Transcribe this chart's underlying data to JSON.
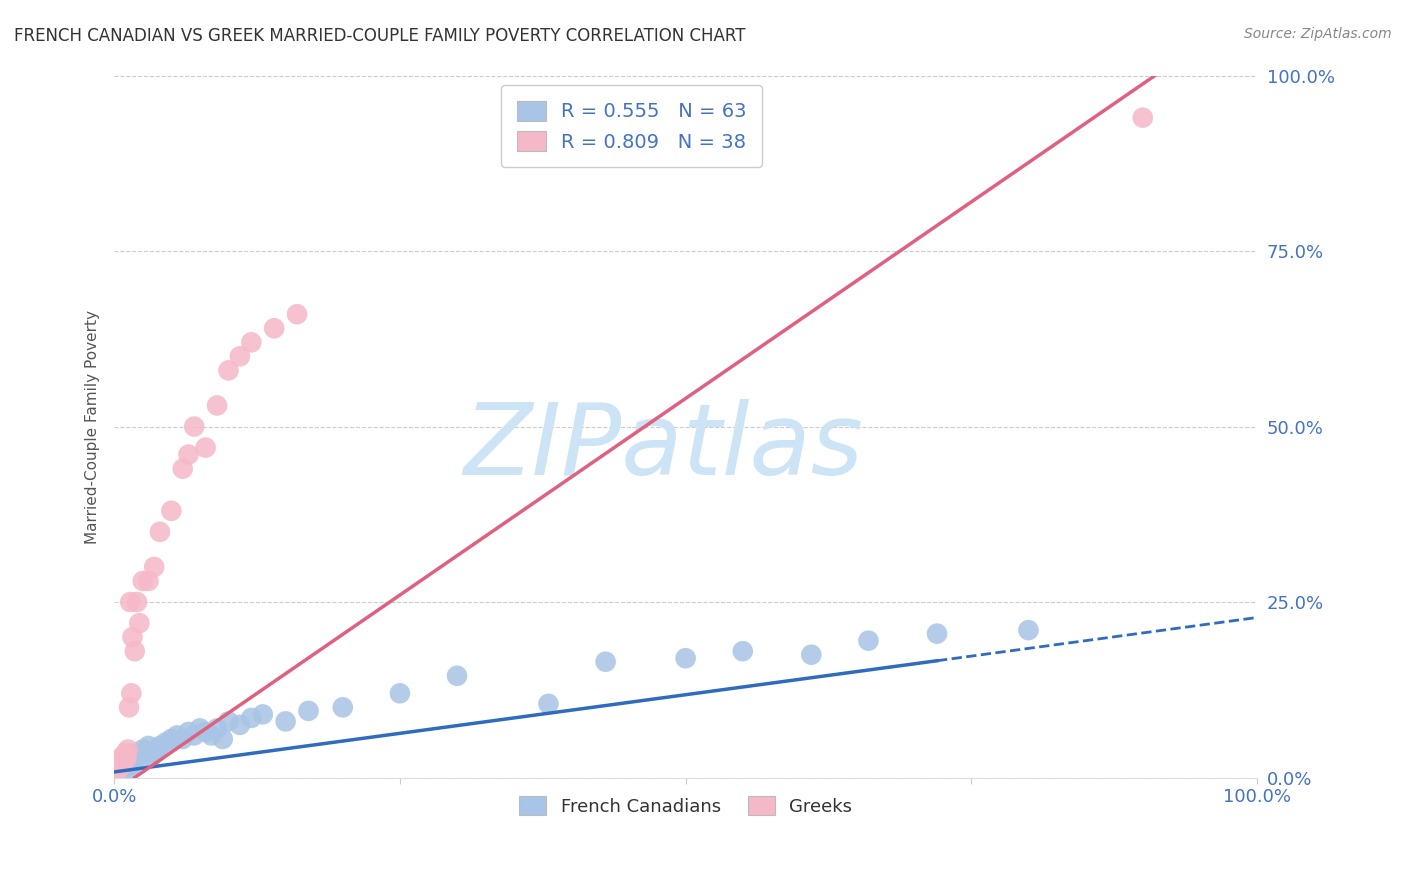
{
  "title": "FRENCH CANADIAN VS GREEK MARRIED-COUPLE FAMILY POVERTY CORRELATION CHART",
  "source": "Source: ZipAtlas.com",
  "ylabel": "Married-Couple Family Poverty",
  "xlim": [
    0.0,
    1.0
  ],
  "ylim": [
    0.0,
    1.0
  ],
  "ytick_labels": [
    "0.0%",
    "25.0%",
    "50.0%",
    "75.0%",
    "100.0%"
  ],
  "ytick_positions": [
    0.0,
    0.25,
    0.5,
    0.75,
    1.0
  ],
  "french_R": 0.555,
  "french_N": 63,
  "greek_R": 0.809,
  "greek_N": 38,
  "french_color": "#a8c4e6",
  "greek_color": "#f5b8c8",
  "french_line_color": "#2f6bbf",
  "greek_line_color": "#e06080",
  "legend_label_french": "French Canadians",
  "legend_label_greek": "Greeks",
  "background_color": "#ffffff",
  "grid_color": "#cccccc",
  "title_color": "#333333",
  "axis_label_color": "#4472c4",
  "watermark": "ZIPatlas",
  "watermark_color": "#cce4f5",
  "french_line_intercept": 0.008,
  "french_line_slope": 0.22,
  "greek_line_intercept": -0.02,
  "greek_line_slope": 1.12,
  "french_x": [
    0.002,
    0.003,
    0.003,
    0.004,
    0.004,
    0.005,
    0.005,
    0.006,
    0.006,
    0.007,
    0.007,
    0.008,
    0.008,
    0.009,
    0.009,
    0.01,
    0.01,
    0.011,
    0.011,
    0.012,
    0.013,
    0.014,
    0.015,
    0.015,
    0.016,
    0.017,
    0.018,
    0.02,
    0.022,
    0.025,
    0.028,
    0.03,
    0.033,
    0.036,
    0.04,
    0.045,
    0.05,
    0.055,
    0.06,
    0.065,
    0.07,
    0.075,
    0.08,
    0.085,
    0.09,
    0.095,
    0.1,
    0.11,
    0.12,
    0.13,
    0.15,
    0.17,
    0.2,
    0.25,
    0.3,
    0.38,
    0.43,
    0.5,
    0.55,
    0.61,
    0.66,
    0.72,
    0.8
  ],
  "french_y": [
    0.01,
    0.012,
    0.015,
    0.01,
    0.018,
    0.012,
    0.02,
    0.015,
    0.022,
    0.01,
    0.018,
    0.012,
    0.025,
    0.015,
    0.02,
    0.018,
    0.025,
    0.012,
    0.022,
    0.02,
    0.025,
    0.018,
    0.022,
    0.03,
    0.018,
    0.025,
    0.035,
    0.03,
    0.025,
    0.04,
    0.035,
    0.045,
    0.03,
    0.035,
    0.045,
    0.05,
    0.055,
    0.06,
    0.055,
    0.065,
    0.06,
    0.07,
    0.065,
    0.06,
    0.07,
    0.055,
    0.08,
    0.075,
    0.085,
    0.09,
    0.08,
    0.095,
    0.1,
    0.12,
    0.145,
    0.105,
    0.165,
    0.17,
    0.18,
    0.175,
    0.195,
    0.205,
    0.21
  ],
  "greek_x": [
    0.002,
    0.003,
    0.004,
    0.004,
    0.005,
    0.005,
    0.006,
    0.007,
    0.007,
    0.008,
    0.009,
    0.01,
    0.01,
    0.011,
    0.012,
    0.013,
    0.014,
    0.015,
    0.016,
    0.018,
    0.02,
    0.022,
    0.025,
    0.03,
    0.035,
    0.04,
    0.05,
    0.06,
    0.065,
    0.07,
    0.08,
    0.09,
    0.1,
    0.11,
    0.12,
    0.14,
    0.16,
    0.9
  ],
  "greek_y": [
    0.01,
    0.015,
    0.012,
    0.02,
    0.015,
    0.025,
    0.018,
    0.02,
    0.03,
    0.025,
    0.03,
    0.025,
    0.035,
    0.03,
    0.04,
    0.1,
    0.25,
    0.12,
    0.2,
    0.18,
    0.25,
    0.22,
    0.28,
    0.28,
    0.3,
    0.35,
    0.38,
    0.44,
    0.46,
    0.5,
    0.47,
    0.53,
    0.58,
    0.6,
    0.62,
    0.64,
    0.66,
    0.94
  ]
}
